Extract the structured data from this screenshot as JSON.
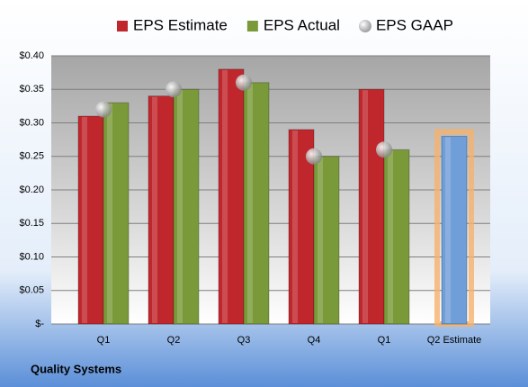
{
  "chart_data": {
    "type": "bar",
    "footer": "Quality Systems",
    "categories": [
      "Q1",
      "Q2",
      "Q3",
      "Q4",
      "Q1",
      "Q2 Estimate"
    ],
    "series": [
      {
        "name": "EPS Estimate",
        "type": "bar",
        "color": "#c0272d",
        "values": [
          0.31,
          0.34,
          0.38,
          0.29,
          0.35,
          0.28
        ],
        "point_colors": [
          "#c0272d",
          "#c0272d",
          "#c0272d",
          "#c0272d",
          "#c0272d",
          "#6f9ed8"
        ]
      },
      {
        "name": "EPS Actual",
        "type": "bar",
        "color": "#7a9a3a",
        "values": [
          0.33,
          0.35,
          0.36,
          0.25,
          0.26,
          null
        ]
      },
      {
        "name": "EPS GAAP",
        "type": "scatter",
        "color": "#a8a8a8",
        "values": [
          0.32,
          0.35,
          0.36,
          0.25,
          0.26,
          null
        ]
      }
    ],
    "ylim": [
      0,
      0.4
    ],
    "yticks": [
      {
        "value": 0,
        "label": "$-"
      },
      {
        "value": 0.05,
        "label": "$0.05"
      },
      {
        "value": 0.1,
        "label": "$0.10"
      },
      {
        "value": 0.15,
        "label": "$0.15"
      },
      {
        "value": 0.2,
        "label": "$0.20"
      },
      {
        "value": 0.25,
        "label": "$0.25"
      },
      {
        "value": 0.3,
        "label": "$0.30"
      },
      {
        "value": 0.35,
        "label": "$0.35"
      },
      {
        "value": 0.4,
        "label": "$0.40"
      }
    ],
    "grid": true
  }
}
